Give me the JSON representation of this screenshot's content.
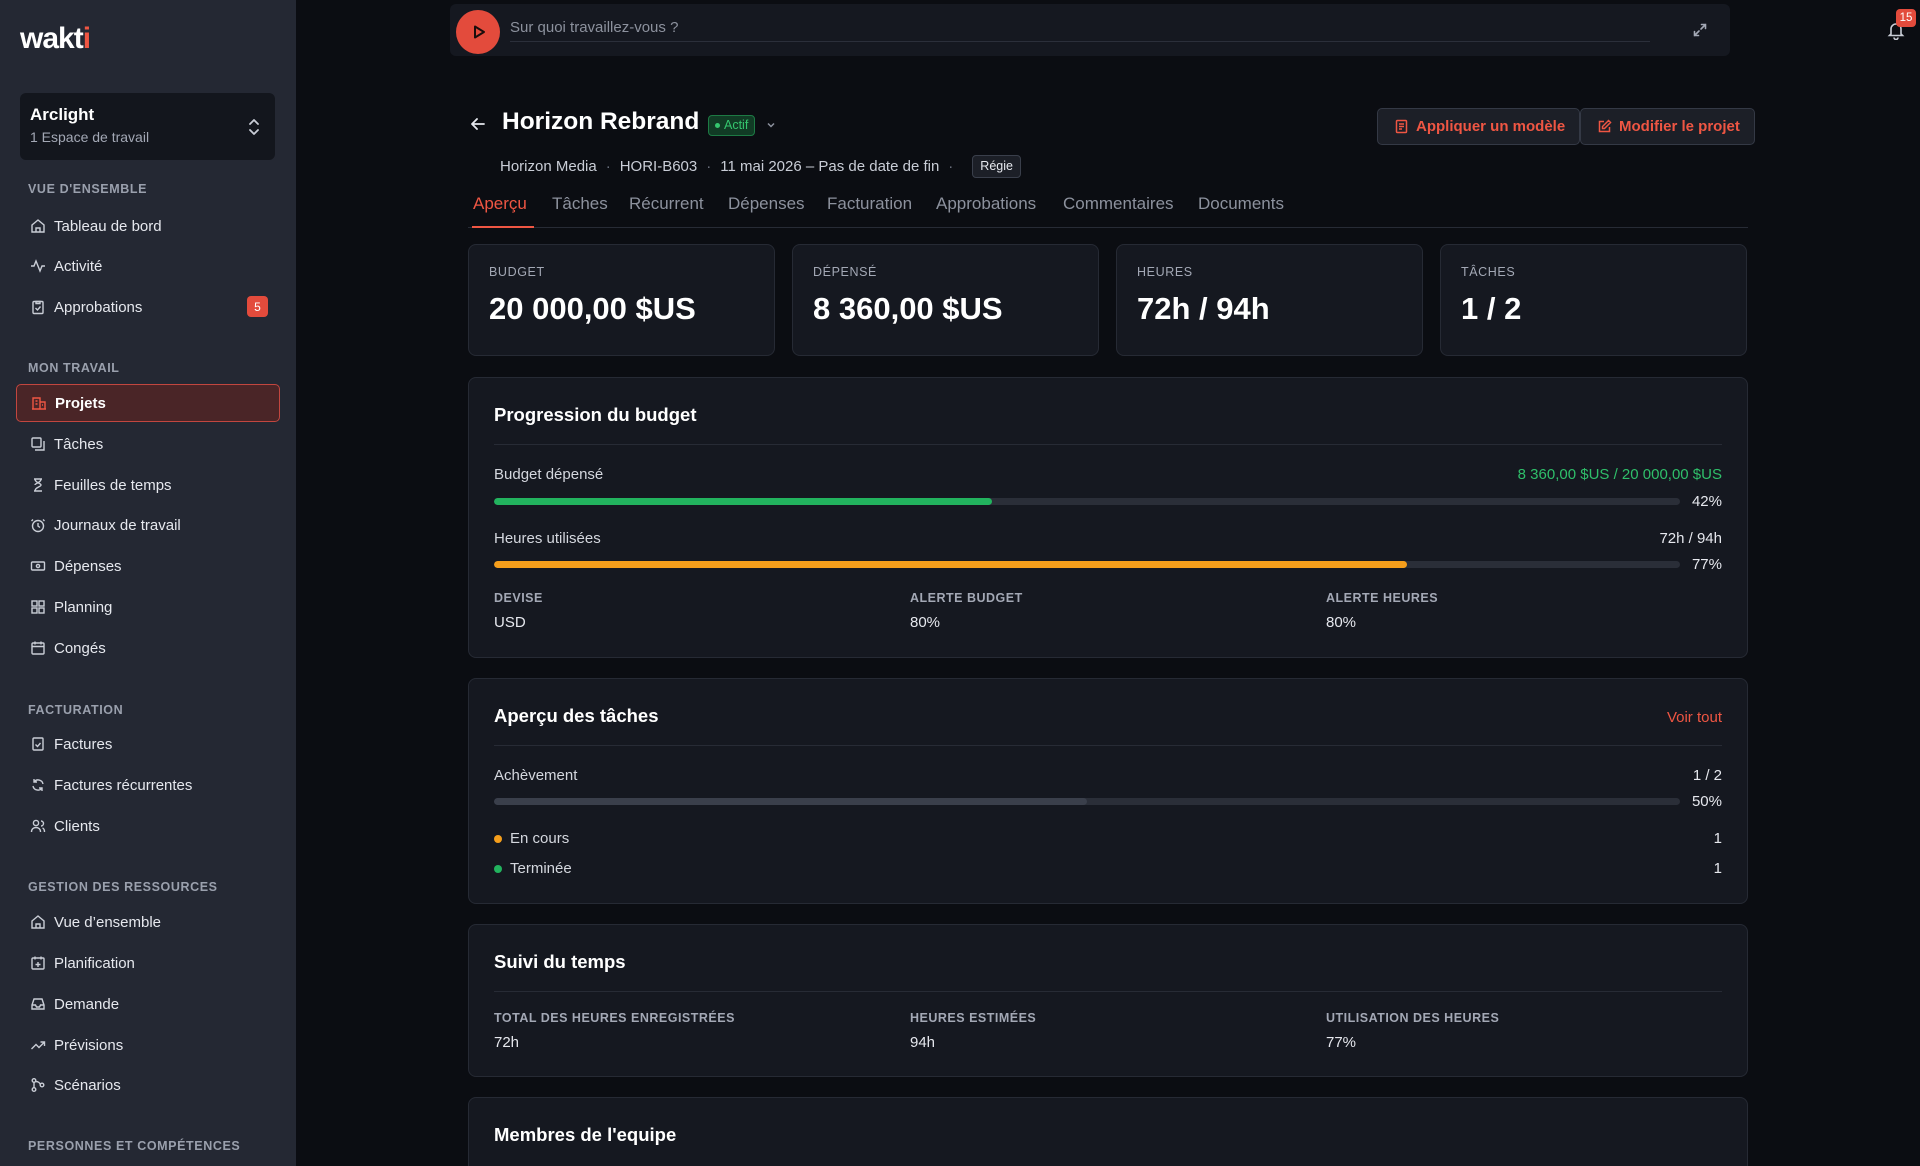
{
  "sidebar": {
    "logo": "wakti",
    "workspace": {
      "name": "Arclight",
      "subtitle": "1 Espace de travail"
    },
    "sections": [
      {
        "title": "VUE D'ENSEMBLE",
        "items": [
          {
            "label": "Tableau de bord",
            "icon": "home-icon"
          },
          {
            "label": "Activité",
            "icon": "activity-icon"
          },
          {
            "label": "Approbations",
            "icon": "clipboard-check-icon",
            "badge": "5"
          }
        ]
      },
      {
        "title": "MON TRAVAIL",
        "items": [
          {
            "label": "Projets",
            "icon": "building-icon",
            "active": true
          },
          {
            "label": "Tâches",
            "icon": "tasks-icon"
          },
          {
            "label": "Feuilles de temps",
            "icon": "hourglass-icon"
          },
          {
            "label": "Journaux de travail",
            "icon": "clock-icon"
          },
          {
            "label": "Dépenses",
            "icon": "banknote-icon"
          },
          {
            "label": "Planning",
            "icon": "grid-icon"
          },
          {
            "label": "Congés",
            "icon": "calendar-icon"
          }
        ]
      },
      {
        "title": "FACTURATION",
        "items": [
          {
            "label": "Factures",
            "icon": "invoice-icon"
          },
          {
            "label": "Factures récurrentes",
            "icon": "refresh-icon"
          },
          {
            "label": "Clients",
            "icon": "users-icon"
          }
        ]
      },
      {
        "title": "GESTION DES RESSOURCES",
        "items": [
          {
            "label": "Vue d’ensemble",
            "icon": "home-icon"
          },
          {
            "label": "Planification",
            "icon": "calendar-plus-icon"
          },
          {
            "label": "Demande",
            "icon": "inbox-icon"
          },
          {
            "label": "Prévisions",
            "icon": "trending-up-icon"
          },
          {
            "label": "Scénarios",
            "icon": "branch-icon"
          }
        ]
      },
      {
        "title": "PERSONNES ET COMPÉTENCES",
        "items": []
      }
    ]
  },
  "timer": {
    "placeholder": "Sur quoi travaillez-vous ?"
  },
  "notifications": {
    "count": "15"
  },
  "project": {
    "title": "Horizon Rebrand",
    "status": "Actif",
    "client": "Horizon Media",
    "code": "HORI-B603",
    "dates": "11 mai 2026 – Pas de date de fin",
    "billing_type": "Régie",
    "apply_template_label": "Appliquer un modèle",
    "edit_label": "Modifier le projet"
  },
  "tabs": [
    "Aperçu",
    "Tâches",
    "Récurrent",
    "Dépenses",
    "Facturation",
    "Approbations",
    "Commentaires",
    "Documents"
  ],
  "kpis": [
    {
      "label": "BUDGET",
      "value": "20 000,00 $US"
    },
    {
      "label": "DÉPENSÉ",
      "value": "8 360,00 $US"
    },
    {
      "label": "HEURES",
      "value": "72h / 94h"
    },
    {
      "label": "TÂCHES",
      "value": "1 / 2"
    }
  ],
  "budget_progress": {
    "title": "Progression du budget",
    "spent_label": "Budget dépensé",
    "spent_value": "8 360,00 $US / 20 000,00 $US",
    "spent_pct": "42%",
    "spent_fraction": 0.42,
    "hours_label": "Heures utilisées",
    "hours_value": "72h / 94h",
    "hours_pct": "77%",
    "hours_fraction": 0.77,
    "currency_label": "DEVISE",
    "currency": "USD",
    "budget_alert_label": "ALERTE BUDGET",
    "budget_alert": "80%",
    "hours_alert_label": "ALERTE HEURES",
    "hours_alert": "80%",
    "colors": {
      "spent": "#22b35e",
      "hours": "#f59e1b"
    }
  },
  "tasks_overview": {
    "title": "Aperçu des tâches",
    "view_all": "Voir tout",
    "completion_label": "Achèvement",
    "completion_value": "1 / 2",
    "completion_pct": "50%",
    "completion_fraction": 0.5,
    "statuses": [
      {
        "label": "En cours",
        "count": "1",
        "color": "#f59e1b"
      },
      {
        "label": "Terminée",
        "count": "1",
        "color": "#22b35e"
      }
    ]
  },
  "time_tracking": {
    "title": "Suivi du temps",
    "total_label": "TOTAL DES HEURES ENREGISTRÉES",
    "total": "72h",
    "estimated_label": "HEURES ESTIMÉES",
    "estimated": "94h",
    "utilization_label": "UTILISATION DES HEURES",
    "utilization": "77%"
  },
  "team": {
    "title": "Membres de l'equipe"
  }
}
